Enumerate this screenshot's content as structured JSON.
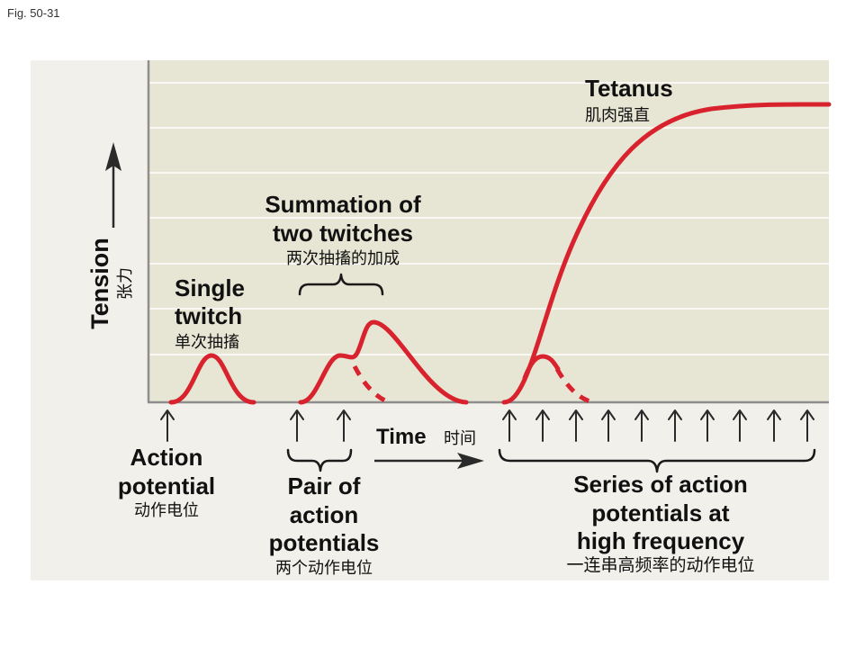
{
  "figure_label": "Fig. 50-31",
  "axis": {
    "y_label": "Tension",
    "y_label_zh": "张力",
    "x_label": "Time",
    "x_label_zh": "时间"
  },
  "annotations": {
    "tetanus": {
      "line1": "Tetanus",
      "zh": "肌肉强直"
    },
    "summation": {
      "line1": "Summation of",
      "line2": "two twitches",
      "zh": "两次抽搐的加成"
    },
    "single": {
      "line1": "Single",
      "line2": "twitch",
      "zh": "单次抽搐"
    },
    "action_potential": {
      "line1": "Action",
      "line2": "potential",
      "zh": "动作电位"
    },
    "pair": {
      "line1": "Pair of",
      "line2": "action",
      "line3": "potentials",
      "zh": "两个动作电位"
    },
    "series": {
      "line1": "Series of action",
      "line2": "potentials at",
      "line3": "high frequency",
      "zh": "一连串高频率的动作电位"
    }
  },
  "colors": {
    "curve": "#d8222e",
    "plot_background": "#e7e5d4",
    "panel_background": "#f2f0ea",
    "gridline": "#ffffff",
    "axis": "#8e8e8e",
    "arrow": "#2a2a2a"
  }
}
